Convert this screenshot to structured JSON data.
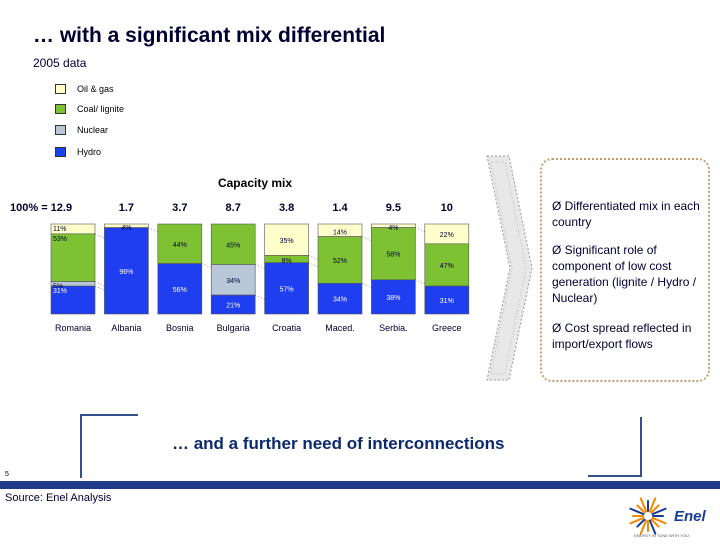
{
  "title": "… with a significant mix differential",
  "subtitle": "2005 data",
  "legend": [
    {
      "label": "Oil & gas",
      "color": "#ffffcc"
    },
    {
      "label": "Coal/ lignite",
      "color": "#7ec234"
    },
    {
      "label": "Nuclear",
      "color": "#b8c8d8"
    },
    {
      "label": "Hydro",
      "color": "#1f3ef0"
    }
  ],
  "chart_data": {
    "type": "bar",
    "stacked": true,
    "percent": true,
    "title": "Capacity mix",
    "total_prefix": "100% =",
    "categories": [
      "Romania",
      "Albania",
      "Bosnia",
      "Bulgaria",
      "Croatia",
      "Maced.",
      "Serbia.",
      "Greece"
    ],
    "totals": [
      "12.9",
      "1.7",
      "3.7",
      "8.7",
      "3.8",
      "1.4",
      "9.5",
      "10"
    ],
    "segments": [
      [
        {
          "type": "Oil & gas",
          "value": 11
        },
        {
          "type": "Coal/ lignite",
          "value": 53
        },
        {
          "type": "Nuclear",
          "value": 5
        },
        {
          "type": "Hydro",
          "value": 31
        }
      ],
      [
        {
          "type": "Oil & gas",
          "value": 4
        },
        {
          "type": "Hydro",
          "value": 96
        }
      ],
      [
        {
          "type": "Coal/ lignite",
          "value": 44
        },
        {
          "type": "Hydro",
          "value": 56
        }
      ],
      [
        {
          "type": "Coal/ lignite",
          "value": 45
        },
        {
          "type": "Nuclear",
          "value": 34
        },
        {
          "type": "Hydro",
          "value": 21
        }
      ],
      [
        {
          "type": "Oil & gas",
          "value": 35
        },
        {
          "type": "Coal/ lignite",
          "value": 8
        },
        {
          "type": "Hydro",
          "value": 57
        }
      ],
      [
        {
          "type": "Oil & gas",
          "value": 14
        },
        {
          "type": "Coal/ lignite",
          "value": 52
        },
        {
          "type": "Hydro",
          "value": 34
        }
      ],
      [
        {
          "type": "Oil & gas",
          "value": 4
        },
        {
          "type": "Coal/ lignite",
          "value": 58
        },
        {
          "type": "Hydro",
          "value": 38
        }
      ],
      [
        {
          "type": "Oil & gas",
          "value": 22
        },
        {
          "type": "Coal/ lignite",
          "value": 47
        },
        {
          "type": "Hydro",
          "value": 31
        }
      ]
    ],
    "grid": false
  },
  "bullets": [
    "Ø Differentiated mix in each country",
    "Ø Significant role of component of low cost generation (lignite / Hydro / Nuclear)",
    "Ø Cost spread reflected in import/export flows"
  ],
  "conclusion": "… and a further need of interconnections",
  "page_number": "5",
  "source": "Source:  Enel Analysis",
  "logo": {
    "text": "Enel",
    "tagline": "ENERGY IN TUNE WITH YOU.",
    "colors": {
      "orange": "#f08a00",
      "blue": "#1a3c96"
    }
  }
}
